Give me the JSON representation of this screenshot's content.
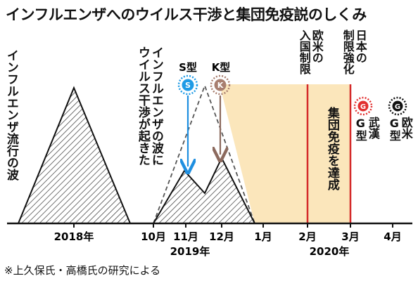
{
  "title": "インフルエンザへのウイルス干渉と集団免疫説のしくみ",
  "footnote": "※上久保氏・高橋氏の研究による",
  "labels": {
    "flu_wave": "インフルエンザ流行の波",
    "interference_line1": "インフルエンザの波に",
    "interference_line2": "ウイルス干渉が起きた",
    "s_type": "S型",
    "k_type": "K型",
    "s_badge": "S",
    "k_badge": "K",
    "g_badge": "G",
    "herd_immunity": "集団免疫を達成",
    "eu_us_entry_line1": "欧米の",
    "eu_us_entry_line2": "入国制限",
    "japan_line1": "日本の",
    "japan_line2": "制限強化",
    "wuhan_line1": "武漢",
    "wuhan_line2": "G型",
    "eu_line1": "欧米",
    "eu_line2": "G型"
  },
  "axis": {
    "months": [
      "2018年",
      "10月",
      "11月",
      "12月",
      "1月",
      "2月",
      "3月",
      "4月"
    ],
    "years": [
      "2019年",
      "2020年"
    ]
  },
  "colors": {
    "immunity_fill": "#fbe6bb",
    "restriction_line": "#d42a2a",
    "s_arrow": "#1f8fe0",
    "k_arrow": "#8c6a5e",
    "s_badge": "#1f9be6",
    "k_badge": "#a87e6f",
    "wuhan_badge": "#e23030",
    "eu_badge": "#111111"
  },
  "icons": {
    "s_badge": "s-type-virus-icon",
    "k_badge": "k-type-virus-icon",
    "wuhan_badge": "wuhan-g-virus-icon",
    "eu_badge": "eu-g-virus-icon"
  }
}
